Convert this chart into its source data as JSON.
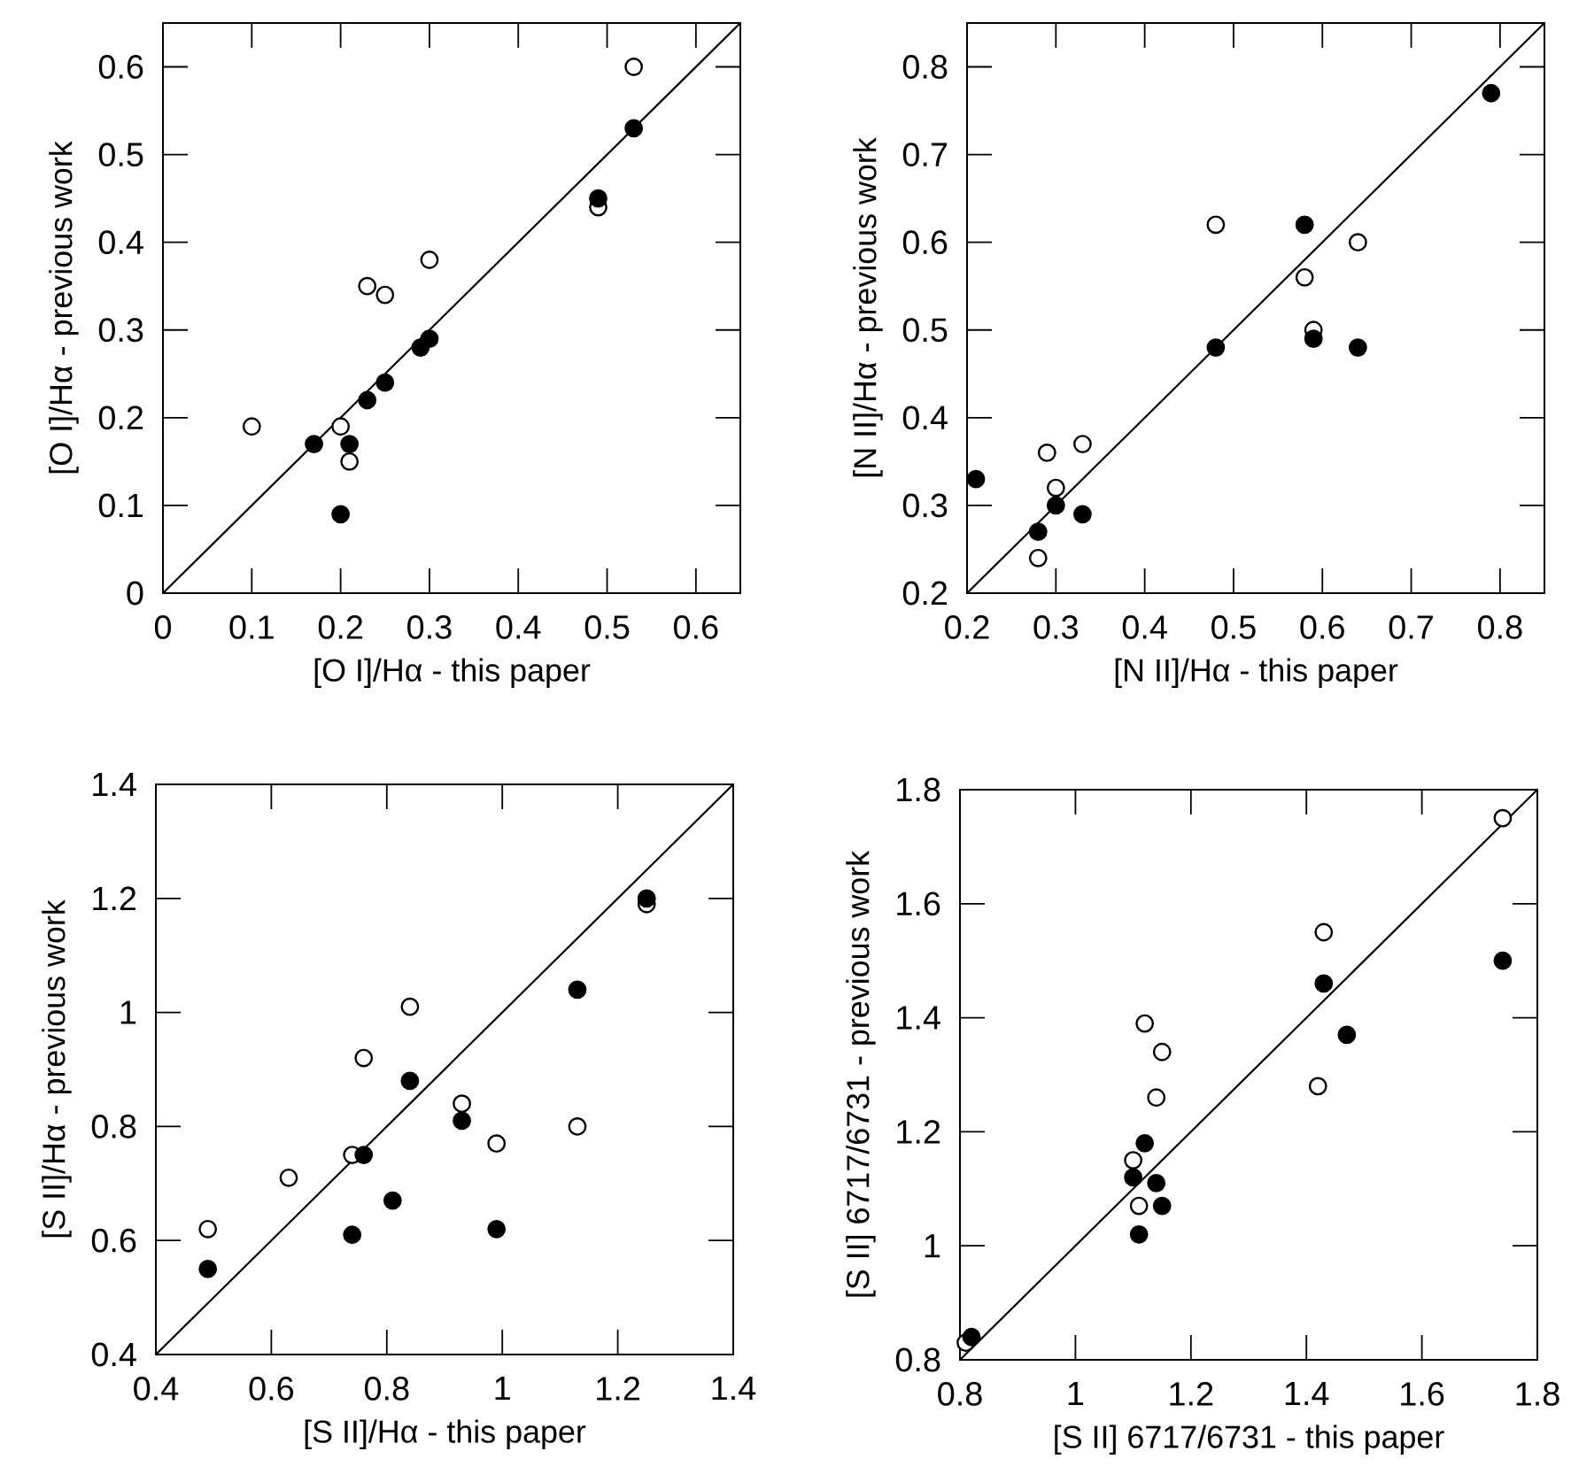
{
  "chart_data": [
    {
      "type": "scatter",
      "xlabel": "[O I]/Hα - this paper",
      "ylabel": "[O I]/Hα - previous work",
      "xlim": [
        0,
        0.65
      ],
      "ylim": [
        0,
        0.65
      ],
      "xticks": [
        0,
        0.1,
        0.2,
        0.3,
        0.4,
        0.5,
        0.6
      ],
      "yticks": [
        0,
        0.1,
        0.2,
        0.3,
        0.4,
        0.5,
        0.6
      ],
      "marker": "circle",
      "grid": false,
      "series": [
        {
          "type": "scatter",
          "color": "#ffffff",
          "x": [
            0.1,
            0.2,
            0.21,
            0.23,
            0.25,
            0.3,
            0.49,
            0.53
          ],
          "values": [
            0.19,
            0.19,
            0.15,
            0.35,
            0.34,
            0.38,
            0.44,
            0.6
          ]
        },
        {
          "type": "scatter",
          "color": "#000000",
          "x": [
            0.17,
            0.2,
            0.21,
            0.23,
            0.25,
            0.29,
            0.3,
            0.49,
            0.53
          ],
          "values": [
            0.17,
            0.09,
            0.17,
            0.22,
            0.24,
            0.28,
            0.29,
            0.45,
            0.53
          ]
        },
        {
          "type": "line",
          "marker": "none",
          "color": "#000000",
          "x": [
            0,
            0.65
          ],
          "values": [
            0,
            0.65
          ]
        }
      ]
    },
    {
      "type": "scatter",
      "xlabel": "[N II]/Hα - this paper",
      "ylabel": "[N II]/Hα - previous work",
      "xlim": [
        0.2,
        0.85
      ],
      "ylim": [
        0.2,
        0.85
      ],
      "xticks": [
        0.2,
        0.3,
        0.4,
        0.5,
        0.6,
        0.7,
        0.8
      ],
      "yticks": [
        0.2,
        0.3,
        0.4,
        0.5,
        0.6,
        0.7,
        0.8
      ],
      "marker": "circle",
      "grid": false,
      "series": [
        {
          "type": "scatter",
          "color": "#ffffff",
          "x": [
            0.28,
            0.29,
            0.3,
            0.33,
            0.48,
            0.58,
            0.59,
            0.64
          ],
          "values": [
            0.24,
            0.36,
            0.32,
            0.37,
            0.62,
            0.56,
            0.5,
            0.6
          ]
        },
        {
          "type": "scatter",
          "color": "#000000",
          "x": [
            0.21,
            0.28,
            0.3,
            0.33,
            0.48,
            0.58,
            0.59,
            0.64,
            0.79
          ],
          "values": [
            0.33,
            0.27,
            0.3,
            0.29,
            0.48,
            0.62,
            0.49,
            0.48,
            0.77
          ]
        },
        {
          "type": "line",
          "marker": "none",
          "color": "#000000",
          "x": [
            0.2,
            0.85
          ],
          "values": [
            0.2,
            0.85
          ]
        }
      ]
    },
    {
      "type": "scatter",
      "xlabel": "[S II]/Hα - this paper",
      "ylabel": "[S II]/Hα - previous work",
      "xlim": [
        0.4,
        1.4
      ],
      "ylim": [
        0.4,
        1.4
      ],
      "xticks": [
        0.4,
        0.6,
        0.8,
        1,
        1.2,
        1.4
      ],
      "yticks": [
        0.4,
        0.6,
        0.8,
        1,
        1.2,
        1.4
      ],
      "marker": "circle",
      "grid": false,
      "series": [
        {
          "type": "scatter",
          "color": "#ffffff",
          "x": [
            0.49,
            0.63,
            0.74,
            0.76,
            0.84,
            0.93,
            0.99,
            1.13,
            1.25
          ],
          "values": [
            0.62,
            0.71,
            0.75,
            0.92,
            1.01,
            0.84,
            0.77,
            0.8,
            1.19
          ]
        },
        {
          "type": "scatter",
          "color": "#000000",
          "x": [
            0.49,
            0.74,
            0.76,
            0.81,
            0.84,
            0.93,
            0.99,
            1.13,
            1.25
          ],
          "values": [
            0.55,
            0.61,
            0.75,
            0.67,
            0.88,
            0.81,
            0.62,
            1.04,
            1.2
          ]
        },
        {
          "type": "line",
          "marker": "none",
          "color": "#000000",
          "x": [
            0.4,
            1.4
          ],
          "values": [
            0.4,
            1.4
          ]
        }
      ]
    },
    {
      "type": "scatter",
      "xlabel": "[S II] 6717/6731 - this paper",
      "ylabel": "[S II] 6717/6731 - previous work",
      "xlim": [
        0.8,
        1.8
      ],
      "ylim": [
        0.8,
        1.8
      ],
      "xticks": [
        0.8,
        1,
        1.2,
        1.4,
        1.6,
        1.8
      ],
      "yticks": [
        0.8,
        1,
        1.2,
        1.4,
        1.6,
        1.8
      ],
      "marker": "circle",
      "grid": false,
      "series": [
        {
          "type": "scatter",
          "color": "#ffffff",
          "x": [
            0.81,
            1.1,
            1.11,
            1.12,
            1.14,
            1.15,
            1.42,
            1.43,
            1.74
          ],
          "values": [
            0.83,
            1.15,
            1.07,
            1.39,
            1.26,
            1.34,
            1.28,
            1.55,
            1.75
          ]
        },
        {
          "type": "scatter",
          "color": "#000000",
          "x": [
            0.82,
            1.1,
            1.11,
            1.12,
            1.14,
            1.15,
            1.43,
            1.47,
            1.74
          ],
          "values": [
            0.84,
            1.12,
            1.02,
            1.18,
            1.11,
            1.07,
            1.46,
            1.37,
            1.5
          ]
        },
        {
          "type": "line",
          "marker": "none",
          "color": "#000000",
          "x": [
            0.8,
            1.8
          ],
          "values": [
            0.8,
            1.8
          ]
        }
      ]
    }
  ]
}
